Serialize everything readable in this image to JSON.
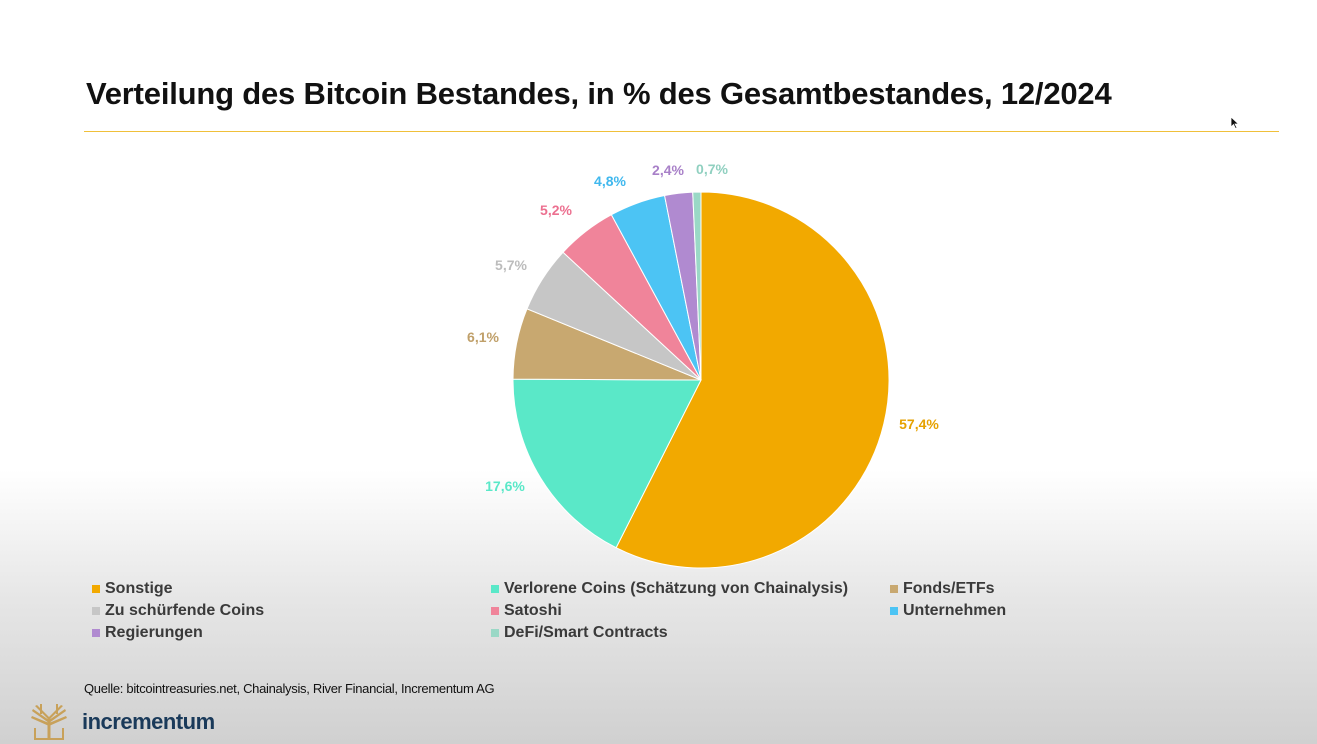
{
  "slide": {
    "title": "Verteilung des Bitcoin Bestandes, in % des Gesamtbestandes, 12/2024",
    "source": "Quelle: bitcointreasuries.net, Chainalysis, River Financial, Incrementum AG",
    "brand": "incrementum"
  },
  "chart_data": {
    "type": "pie",
    "title": "Verteilung des Bitcoin Bestandes, in % des Gesamtbestandes, 12/2024",
    "start_angle": "12 o'clock, clockwise",
    "legend_position": "bottom",
    "slices": [
      {
        "name": "Sonstige",
        "value": 57.4,
        "label": "57,4%",
        "color": "#f2a900"
      },
      {
        "name": "Verlorene Coins (Schätzung von Chainalysis)",
        "value": 17.6,
        "label": "17,6%",
        "color": "#5ae8c8"
      },
      {
        "name": "Fonds/ETFs",
        "value": 6.1,
        "label": "6,1%",
        "color": "#c8a870"
      },
      {
        "name": "Zu schürfende Coins",
        "value": 5.7,
        "label": "5,7%",
        "color": "#c6c6c6"
      },
      {
        "name": "Satoshi",
        "value": 5.2,
        "label": "5,2%",
        "color": "#f0849a"
      },
      {
        "name": "Unternehmen",
        "value": 4.8,
        "label": "4,8%",
        "color": "#4cc4f4"
      },
      {
        "name": "Regierungen",
        "value": 2.4,
        "label": "2,4%",
        "color": "#b08ad0"
      },
      {
        "name": "DeFi/Smart Contracts",
        "value": 0.7,
        "label": "0,7%",
        "color": "#9ad8c6"
      }
    ]
  }
}
